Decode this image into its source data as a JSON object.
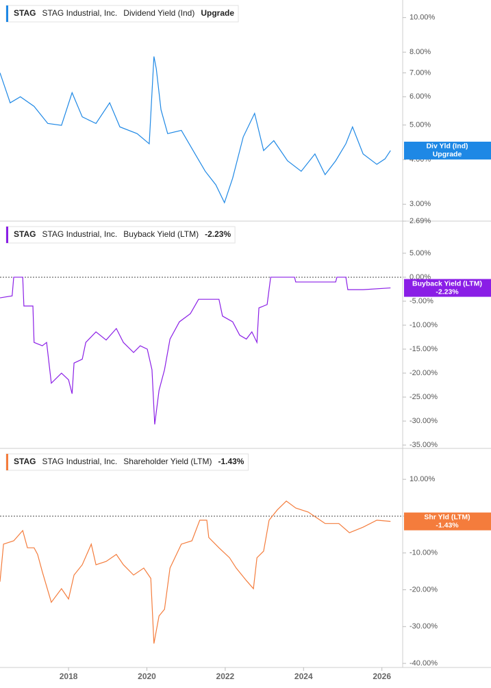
{
  "chart_data": [
    {
      "type": "line",
      "ticker": "STAG",
      "company": "STAG Industrial, Inc.",
      "log_scale": true,
      "zero_line": false,
      "xlim": [
        2016.25,
        2026.53
      ],
      "ylim": [
        2.69,
        11.2
      ],
      "yticks": [
        {
          "value": 10,
          "label": "10.00%"
        },
        {
          "value": 8,
          "label": "8.00%"
        },
        {
          "value": 7,
          "label": "7.00%"
        },
        {
          "value": 6,
          "label": "6.00%"
        },
        {
          "value": 5,
          "label": "5.00%"
        },
        {
          "value": 4,
          "label": "4.00%"
        },
        {
          "value": 3,
          "label": "3.00%"
        },
        {
          "value": 2.69,
          "label": "2.69%"
        }
      ],
      "x": [
        2016.25,
        2016.51,
        2016.77,
        2017.12,
        2017.47,
        2017.82,
        2018.09,
        2018.35,
        2018.7,
        2019.05,
        2019.31,
        2019.75,
        2020.06,
        2020.18,
        2020.24,
        2020.36,
        2020.53,
        2020.88,
        2021.23,
        2021.49,
        2021.76,
        2021.98,
        2022.19,
        2022.46,
        2022.75,
        2022.98,
        2023.24,
        2023.59,
        2023.94,
        2024.29,
        2024.55,
        2024.82,
        2025.08,
        2025.25,
        2025.52,
        2025.87,
        2026.08,
        2026.22
      ],
      "series": [
        {
          "name": "Dividend Yield (Ind)",
          "short_name": "Div Yld (Ind)",
          "status": "Upgrade",
          "color": "#1e88e5",
          "values": [
            7.0,
            5.77,
            6.0,
            5.64,
            5.05,
            4.99,
            6.16,
            5.27,
            5.05,
            5.77,
            4.94,
            4.73,
            4.43,
            7.78,
            7.19,
            5.52,
            4.73,
            4.83,
            4.15,
            3.71,
            3.4,
            3.03,
            3.55,
            4.63,
            5.39,
            4.24,
            4.52,
            3.97,
            3.71,
            4.15,
            3.63,
            3.97,
            4.43,
            4.94,
            4.15,
            3.88,
            4.02,
            4.24
          ]
        }
      ]
    },
    {
      "type": "line",
      "ticker": "STAG",
      "company": "STAG Industrial, Inc.",
      "log_scale": false,
      "zero_line": true,
      "xlim": [
        2016.25,
        2026.53
      ],
      "ylim": [
        -35.7,
        11.7
      ],
      "yticks": [
        {
          "value": 5,
          "label": "5.00%"
        },
        {
          "value": 0,
          "label": "0.00%"
        },
        {
          "value": -5,
          "label": "-5.00%"
        },
        {
          "value": -10,
          "label": "-10.00%"
        },
        {
          "value": -15,
          "label": "-15.00%"
        },
        {
          "value": -20,
          "label": "-20.00%"
        },
        {
          "value": -25,
          "label": "-25.00%"
        },
        {
          "value": -30,
          "label": "-30.00%"
        },
        {
          "value": -35,
          "label": "-35.00%"
        }
      ],
      "x": [
        2016.25,
        2016.56,
        2016.6,
        2016.83,
        2016.86,
        2017.09,
        2017.12,
        2017.33,
        2017.44,
        2017.56,
        2017.82,
        2018.0,
        2018.09,
        2018.14,
        2018.35,
        2018.44,
        2018.7,
        2018.96,
        2019.22,
        2019.4,
        2019.66,
        2019.83,
        2020.01,
        2020.13,
        2020.2,
        2020.31,
        2020.45,
        2020.59,
        2020.83,
        2021.11,
        2021.32,
        2021.84,
        2021.93,
        2022.19,
        2022.37,
        2022.54,
        2022.68,
        2022.81,
        2022.86,
        2023.07,
        2023.16,
        2023.77,
        2023.8,
        2024.82,
        2024.85,
        2025.08,
        2025.13,
        2025.52,
        2026.22
      ],
      "series": [
        {
          "name": "Buyback Yield (LTM)",
          "short_name": "Buyback Yield (LTM)",
          "color": "#8a1ee6",
          "values": [
            -4.3,
            -3.9,
            0,
            0,
            -6.0,
            -6.0,
            -13.6,
            -14.3,
            -13.6,
            -22.1,
            -20.0,
            -21.4,
            -24.3,
            -17.9,
            -17.1,
            -13.6,
            -11.4,
            -13.1,
            -10.7,
            -13.6,
            -15.7,
            -14.3,
            -15.0,
            -19.3,
            -30.7,
            -23.6,
            -19.3,
            -12.9,
            -9.3,
            -7.6,
            -4.6,
            -4.6,
            -8.1,
            -9.3,
            -12.1,
            -12.9,
            -11.4,
            -13.6,
            -6.4,
            -5.7,
            0,
            0,
            -1.0,
            -1.0,
            0,
            0,
            -2.6,
            -2.6,
            -2.23
          ],
          "value_labels": [
            null,
            null,
            null,
            null,
            null,
            null,
            null,
            null,
            null,
            null,
            null,
            null,
            null,
            null,
            null,
            null,
            null,
            null,
            null,
            null,
            null,
            null,
            null,
            null,
            null,
            null,
            null,
            null,
            null,
            null,
            null,
            null,
            null,
            null,
            null,
            null,
            null,
            null,
            null,
            null,
            null,
            null,
            null,
            null,
            null,
            null,
            null,
            null,
            "-2.23%"
          ]
        }
      ]
    },
    {
      "type": "line",
      "ticker": "STAG",
      "company": "STAG Industrial, Inc.",
      "log_scale": false,
      "zero_line": true,
      "xlim": [
        2016.25,
        2026.53
      ],
      "ylim": [
        -41.1,
        18.4
      ],
      "yticks": [
        {
          "value": 10,
          "label": "10.00%"
        },
        {
          "value": 0,
          "label": "0.00%"
        },
        {
          "value": -10,
          "label": "-10.00%"
        },
        {
          "value": -20,
          "label": "-20.00%"
        },
        {
          "value": -30,
          "label": "-30.00%"
        },
        {
          "value": -40,
          "label": "-40.00%"
        }
      ],
      "xticks": [
        2018,
        2020,
        2022,
        2024,
        2026
      ],
      "x": [
        2016.25,
        2016.34,
        2016.6,
        2016.83,
        2016.95,
        2017.12,
        2017.21,
        2017.33,
        2017.56,
        2017.82,
        2018.0,
        2018.14,
        2018.35,
        2018.58,
        2018.7,
        2018.96,
        2019.22,
        2019.4,
        2019.66,
        2019.92,
        2020.1,
        2020.18,
        2020.31,
        2020.45,
        2020.59,
        2020.88,
        2021.15,
        2021.35,
        2021.53,
        2021.58,
        2021.84,
        2022.11,
        2022.28,
        2022.54,
        2022.72,
        2022.81,
        2022.98,
        2023.12,
        2023.33,
        2023.56,
        2023.8,
        2024.12,
        2024.55,
        2024.9,
        2025.17,
        2025.52,
        2025.87,
        2026.22
      ],
      "series": [
        {
          "name": "Shareholder Yield (LTM)",
          "short_name": "Shr Yld (LTM)",
          "color": "#f47c3c",
          "values": [
            -17.8,
            -7.6,
            -6.7,
            -3.9,
            -8.6,
            -8.6,
            -10.4,
            -15.1,
            -23.4,
            -19.7,
            -22.5,
            -16.0,
            -13.2,
            -7.6,
            -13.2,
            -12.3,
            -10.4,
            -13.2,
            -16.0,
            -14.1,
            -16.9,
            -34.6,
            -27.1,
            -25.3,
            -14.1,
            -7.6,
            -6.7,
            -1.1,
            -1.1,
            -5.8,
            -8.6,
            -11.3,
            -14.1,
            -17.5,
            -19.7,
            -11.3,
            -9.5,
            -1.1,
            1.7,
            4.1,
            2.2,
            1.1,
            -2.0,
            -2.0,
            -4.5,
            -3.0,
            -1.1,
            -1.43
          ],
          "value_labels": [
            null,
            null,
            null,
            null,
            null,
            null,
            null,
            null,
            null,
            null,
            null,
            null,
            null,
            null,
            null,
            null,
            null,
            null,
            null,
            null,
            null,
            null,
            null,
            null,
            null,
            null,
            null,
            null,
            null,
            null,
            null,
            null,
            null,
            null,
            null,
            null,
            null,
            null,
            null,
            null,
            null,
            null,
            null,
            null,
            null,
            null,
            null,
            "-1.43%"
          ]
        }
      ]
    }
  ]
}
